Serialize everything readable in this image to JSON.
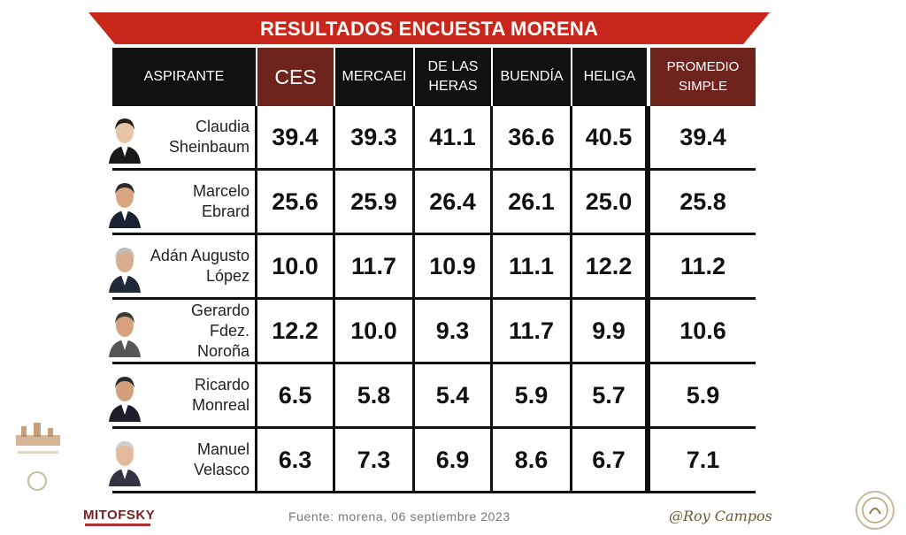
{
  "title": "RESULTADOS ENCUESTA MORENA",
  "headers": {
    "aspirante": "ASPIRANTE",
    "ces": "CES",
    "mercaei": "MERCAEI",
    "delasheras_l1": "DE LAS",
    "delasheras_l2": "HERAS",
    "buendia": "BUENDÍA",
    "heliga": "HELIGA",
    "promedio_l1": "PROMEDIO",
    "promedio_l2": "SIMPLE"
  },
  "rows": [
    {
      "name_l1": "Claudia",
      "name_l2": "Sheinbaum",
      "ces": "39.4",
      "mercaei": "39.3",
      "delasheras": "41.1",
      "buendia": "36.6",
      "heliga": "40.5",
      "promedio": "39.4"
    },
    {
      "name_l1": "Marcelo",
      "name_l2": "Ebrard",
      "ces": "25.6",
      "mercaei": "25.9",
      "delasheras": "26.4",
      "buendia": "26.1",
      "heliga": "25.0",
      "promedio": "25.8"
    },
    {
      "name_l1": "Adán Augusto",
      "name_l2": "López",
      "ces": "10.0",
      "mercaei": "11.7",
      "delasheras": "10.9",
      "buendia": "11.1",
      "heliga": "12.2",
      "promedio": "11.2"
    },
    {
      "name_l1": "Gerardo Fdez.",
      "name_l2": "Noroña",
      "ces": "12.2",
      "mercaei": "10.0",
      "delasheras": "9.3",
      "buendia": "11.7",
      "heliga": "9.9",
      "promedio": "10.6"
    },
    {
      "name_l1": "Ricardo",
      "name_l2": "Monreal",
      "ces": "6.5",
      "mercaei": "5.8",
      "delasheras": "5.4",
      "buendia": "5.9",
      "heliga": "5.7",
      "promedio": "5.9"
    },
    {
      "name_l1": "Manuel",
      "name_l2": "Velasco",
      "ces": "6.3",
      "mercaei": "7.3",
      "delasheras": "6.9",
      "buendia": "8.6",
      "heliga": "6.7",
      "promedio": "7.1"
    }
  ],
  "footer": {
    "source": "Fuente: morena, 06 septiembre 2023",
    "pollster_logo": "MITOFSKY",
    "signature": "@Roy Campos"
  },
  "colors": {
    "banner": "#c8281c",
    "header_black": "#111111",
    "header_accent": "#6e241d"
  },
  "chart_data": {
    "type": "table",
    "title": "RESULTADOS ENCUESTA MORENA",
    "columns": [
      "ASPIRANTE",
      "CES",
      "MERCAEI",
      "DE LAS HERAS",
      "BUENDÍA",
      "HELIGA",
      "PROMEDIO SIMPLE"
    ],
    "categories": [
      "Claudia Sheinbaum",
      "Marcelo Ebrard",
      "Adán Augusto López",
      "Gerardo Fdez. Noroña",
      "Ricardo Monreal",
      "Manuel Velasco"
    ],
    "series": [
      {
        "name": "CES",
        "values": [
          39.4,
          25.6,
          10.0,
          12.2,
          6.5,
          6.3
        ]
      },
      {
        "name": "MERCAEI",
        "values": [
          39.3,
          25.9,
          11.7,
          10.0,
          5.8,
          7.3
        ]
      },
      {
        "name": "DE LAS HERAS",
        "values": [
          41.1,
          26.4,
          10.9,
          9.3,
          5.4,
          6.9
        ]
      },
      {
        "name": "BUENDÍA",
        "values": [
          36.6,
          26.1,
          11.1,
          11.7,
          5.9,
          8.6
        ]
      },
      {
        "name": "HELIGA",
        "values": [
          40.5,
          25.0,
          12.2,
          9.9,
          5.7,
          6.7
        ]
      },
      {
        "name": "PROMEDIO SIMPLE",
        "values": [
          39.4,
          25.8,
          11.2,
          10.6,
          5.9,
          7.1
        ]
      }
    ]
  }
}
